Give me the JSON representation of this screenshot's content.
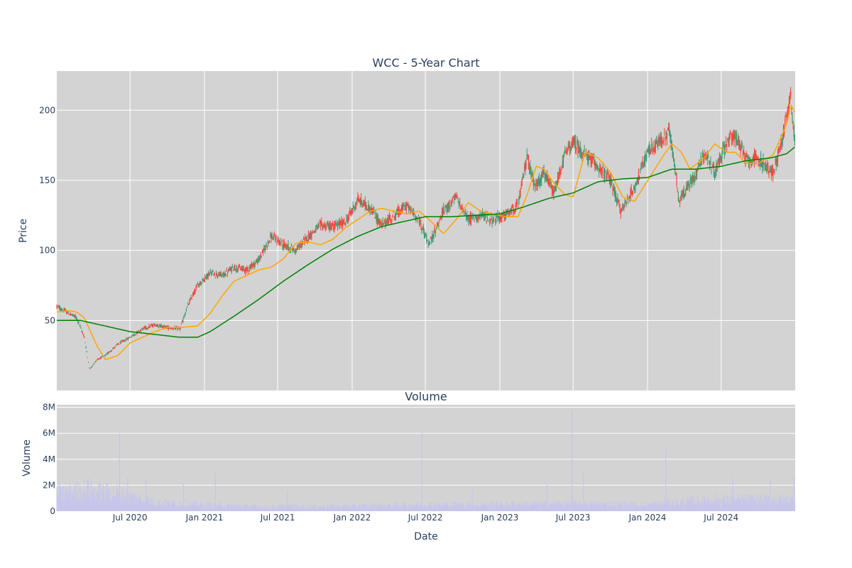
{
  "chart_data": [
    {
      "type": "candlestick",
      "title": "WCC - 5-Year Chart",
      "ylabel": "Price",
      "xlim": [
        "2020-01-02",
        "2024-12-31"
      ],
      "ylim": [
        0,
        228
      ],
      "yticks": [
        50,
        100,
        150,
        200
      ],
      "grid": true,
      "colors": {
        "background": "#d3d3d3",
        "grid": "#ffffff",
        "increasing": "#3d9970",
        "decreasing": "#ff4136",
        "sma50": "#ffa500",
        "sma200": "#008000"
      },
      "series": [
        {
          "kind": "close-path",
          "x": [
            "2020-01-02",
            "2020-02-01",
            "2020-02-20",
            "2020-03-10",
            "2020-03-23",
            "2020-04-10",
            "2020-05-01",
            "2020-06-01",
            "2020-07-01",
            "2020-08-01",
            "2020-09-01",
            "2020-10-01",
            "2020-11-02",
            "2020-11-20",
            "2020-12-15",
            "2021-01-15",
            "2021-02-15",
            "2021-03-15",
            "2021-04-15",
            "2021-05-15",
            "2021-06-15",
            "2021-07-15",
            "2021-08-15",
            "2021-09-15",
            "2021-10-15",
            "2021-11-15",
            "2021-12-15",
            "2022-01-15",
            "2022-02-15",
            "2022-03-15",
            "2022-04-15",
            "2022-05-15",
            "2022-06-15",
            "2022-07-10",
            "2022-08-15",
            "2022-09-15",
            "2022-10-15",
            "2022-11-15",
            "2022-12-15",
            "2023-01-15",
            "2023-02-15",
            "2023-03-10",
            "2023-03-28",
            "2023-04-20",
            "2023-05-15",
            "2023-06-10",
            "2023-07-01",
            "2023-07-31",
            "2023-09-01",
            "2023-10-01",
            "2023-10-27",
            "2023-11-30",
            "2024-01-02",
            "2024-02-10",
            "2024-02-25",
            "2024-03-20",
            "2024-04-30",
            "2024-05-20",
            "2024-06-15",
            "2024-07-15",
            "2024-08-05",
            "2024-09-01",
            "2024-10-01",
            "2024-11-06",
            "2024-11-25",
            "2024-12-10",
            "2024-12-20",
            "2024-12-31"
          ],
          "y": [
            60,
            55,
            52,
            38,
            15,
            22,
            25,
            33,
            38,
            44,
            47,
            45,
            44,
            60,
            75,
            84,
            82,
            88,
            86,
            93,
            110,
            104,
            100,
            110,
            118,
            117,
            120,
            136,
            130,
            118,
            125,
            132,
            122,
            104,
            128,
            138,
            122,
            125,
            122,
            125,
            132,
            168,
            145,
            155,
            140,
            168,
            177,
            168,
            160,
            150,
            128,
            145,
            170,
            180,
            185,
            135,
            155,
            170,
            155,
            178,
            182,
            165,
            165,
            155,
            175,
            195,
            210,
            175
          ]
        },
        {
          "kind": "line",
          "name": "",
          "ref": "sma50",
          "x": [
            "2020-01-02",
            "2020-02-01",
            "2020-02-20",
            "2020-03-10",
            "2020-04-10",
            "2020-05-01",
            "2020-06-01",
            "2020-07-01",
            "2020-08-01",
            "2020-09-01",
            "2020-10-01",
            "2020-11-02",
            "2020-12-15",
            "2021-01-15",
            "2021-02-15",
            "2021-03-15",
            "2021-04-15",
            "2021-05-15",
            "2021-06-15",
            "2021-07-15",
            "2021-08-15",
            "2021-09-15",
            "2021-10-15",
            "2021-11-15",
            "2021-12-15",
            "2022-01-15",
            "2022-02-15",
            "2022-03-15",
            "2022-04-15",
            "2022-05-15",
            "2022-06-15",
            "2022-07-10",
            "2022-08-15",
            "2022-09-15",
            "2022-10-15",
            "2022-11-15",
            "2022-12-15",
            "2023-01-15",
            "2023-02-15",
            "2023-03-10",
            "2023-04-01",
            "2023-04-20",
            "2023-05-15",
            "2023-06-10",
            "2023-07-01",
            "2023-07-31",
            "2023-09-01",
            "2023-10-01",
            "2023-11-01",
            "2023-11-30",
            "2024-01-02",
            "2024-02-10",
            "2024-03-01",
            "2024-03-25",
            "2024-04-15",
            "2024-05-20",
            "2024-06-15",
            "2024-07-15",
            "2024-08-05",
            "2024-09-01",
            "2024-10-01",
            "2024-11-06",
            "2024-11-25",
            "2024-12-10",
            "2024-12-20",
            "2024-12-31"
          ],
          "y": [
            56,
            57,
            56,
            52,
            32,
            22,
            25,
            34,
            38,
            42,
            45,
            45,
            46,
            55,
            68,
            78,
            82,
            86,
            88,
            94,
            105,
            106,
            104,
            108,
            116,
            122,
            128,
            130,
            128,
            126,
            128,
            122,
            112,
            122,
            134,
            128,
            126,
            124,
            124,
            140,
            160,
            158,
            148,
            140,
            138,
            170,
            166,
            156,
            138,
            135,
            150,
            168,
            176,
            170,
            158,
            166,
            176,
            170,
            170,
            162,
            162,
            168,
            180,
            190,
            204,
            198
          ],
          "value_kind": "sma50"
        },
        {
          "kind": "line",
          "name": "",
          "ref": "sma200",
          "x": [
            "2020-01-02",
            "2020-03-01",
            "2020-05-01",
            "2020-07-01",
            "2020-09-01",
            "2020-11-01",
            "2020-12-15",
            "2021-01-15",
            "2021-03-15",
            "2021-05-15",
            "2021-07-15",
            "2021-09-15",
            "2021-11-15",
            "2022-01-15",
            "2022-03-15",
            "2022-05-15",
            "2022-07-01",
            "2022-09-01",
            "2022-11-01",
            "2023-01-01",
            "2023-03-01",
            "2023-05-01",
            "2023-07-01",
            "2023-09-01",
            "2023-11-01",
            "2024-01-01",
            "2024-03-01",
            "2024-05-01",
            "2024-07-01",
            "2024-09-01",
            "2024-11-01",
            "2024-12-10",
            "2024-12-31"
          ],
          "y": [
            50,
            50,
            46,
            42,
            40,
            38,
            38,
            42,
            53,
            65,
            78,
            90,
            101,
            110,
            117,
            121,
            124,
            124,
            125,
            126,
            131,
            137,
            141,
            149,
            151,
            152,
            158,
            158,
            160,
            164,
            166,
            169,
            174
          ]
        }
      ]
    },
    {
      "type": "bar",
      "title": "Volume",
      "xlabel": "Date",
      "ylabel": "Volume",
      "ylim": [
        0,
        8200000
      ],
      "yticks": [
        0,
        2000000,
        4000000,
        6000000,
        8000000
      ],
      "ytick_labels": [
        "0",
        "2M",
        "4M",
        "6M",
        "8M"
      ],
      "xtick_labels": [
        "Jul 2020",
        "Jan 2021",
        "Jul 2021",
        "Jan 2022",
        "Jul 2022",
        "Jan 2023",
        "Jul 2023",
        "Jan 2024",
        "Jul 2024"
      ],
      "xtick_dates": [
        "2020-07-01",
        "2021-01-01",
        "2021-07-01",
        "2022-01-01",
        "2022-07-01",
        "2023-01-01",
        "2023-07-01",
        "2024-01-01",
        "2024-07-01"
      ],
      "bar_color": "#c6c6ec",
      "baseline_volume": [
        [
          "2020-01-02",
          1300000
        ],
        [
          "2020-03-15",
          1700000
        ],
        [
          "2020-06-01",
          1400000
        ],
        [
          "2020-09-01",
          700000
        ],
        [
          "2021-01-01",
          500000
        ],
        [
          "2021-06-01",
          350000
        ],
        [
          "2022-01-01",
          400000
        ],
        [
          "2022-06-01",
          500000
        ],
        [
          "2023-01-01",
          550000
        ],
        [
          "2023-06-01",
          600000
        ],
        [
          "2024-01-01",
          500000
        ],
        [
          "2024-06-01",
          900000
        ],
        [
          "2024-12-31",
          900000
        ]
      ],
      "spikes": [
        [
          "2020-01-08",
          2300000
        ],
        [
          "2020-02-28",
          2000000
        ],
        [
          "2020-03-20",
          2600000
        ],
        [
          "2020-06-05",
          6000000
        ],
        [
          "2020-06-25",
          2700000
        ],
        [
          "2020-08-10",
          2500000
        ],
        [
          "2020-11-10",
          2100000
        ],
        [
          "2021-01-28",
          3000000
        ],
        [
          "2021-07-25",
          1600000
        ],
        [
          "2022-06-22",
          6100000
        ],
        [
          "2022-10-25",
          1700000
        ],
        [
          "2023-04-28",
          2100000
        ],
        [
          "2023-06-28",
          7800000
        ],
        [
          "2023-07-27",
          3000000
        ],
        [
          "2024-02-15",
          4800000
        ],
        [
          "2024-07-30",
          2600000
        ],
        [
          "2024-10-30",
          2600000
        ],
        [
          "2024-12-28",
          2700000
        ]
      ]
    }
  ]
}
